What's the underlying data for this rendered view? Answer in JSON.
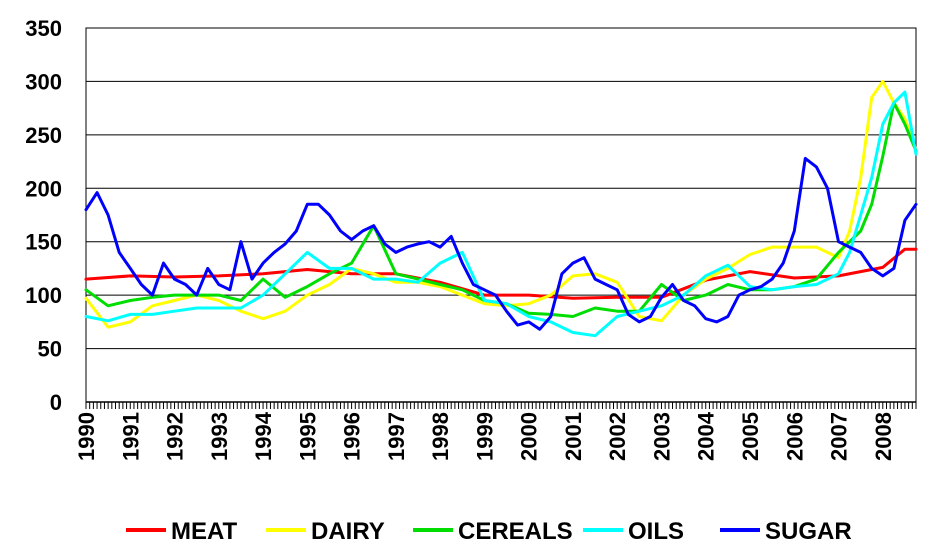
{
  "chart_data": {
    "type": "line",
    "title": "",
    "xlabel": "",
    "ylabel": "",
    "ylim": [
      0,
      350
    ],
    "yticks": [
      0,
      50,
      100,
      150,
      200,
      250,
      300,
      350
    ],
    "xlim": [
      1990,
      2008.75
    ],
    "year_labels": [
      "1990",
      "1991",
      "1992",
      "1993",
      "1994",
      "1995",
      "1996",
      "1997",
      "1998",
      "1999",
      "2000",
      "2001",
      "2002",
      "2003",
      "2004",
      "2005",
      "2006",
      "2007",
      "2008"
    ],
    "grid": "horizontal",
    "legend": "bottom",
    "series": [
      {
        "name": "MEAT",
        "color": "#ff0000",
        "x": [
          1990,
          1991,
          1992,
          1993,
          1994,
          1995,
          1996,
          1997,
          1998,
          1999,
          2000,
          2001,
          2002,
          2003,
          2004,
          2005,
          2006,
          2007,
          2008,
          2008.5,
          2008.75
        ],
        "y": [
          115,
          118,
          117,
          118,
          120,
          124,
          120,
          120,
          112,
          100,
          100,
          97,
          98,
          98,
          114,
          122,
          116,
          118,
          126,
          143,
          143
        ]
      },
      {
        "name": "DAIRY",
        "color": "#ffff00",
        "x": [
          1990,
          1990.5,
          1991,
          1991.5,
          1992,
          1992.5,
          1993,
          1993.5,
          1994,
          1994.5,
          1995,
          1995.5,
          1996,
          1996.5,
          1997,
          1997.5,
          1998,
          1998.5,
          1999,
          1999.5,
          2000,
          2000.5,
          2001,
          2001.5,
          2002,
          2002.5,
          2003,
          2003.5,
          2004,
          2004.5,
          2005,
          2005.5,
          2006,
          2006.5,
          2007,
          2007.25,
          2007.5,
          2007.75,
          2008,
          2008.25,
          2008.5,
          2008.75
        ],
        "y": [
          97,
          70,
          75,
          90,
          95,
          100,
          95,
          85,
          78,
          85,
          100,
          110,
          125,
          120,
          112,
          112,
          108,
          100,
          92,
          90,
          92,
          100,
          118,
          120,
          112,
          80,
          76,
          100,
          115,
          125,
          138,
          145,
          145,
          145,
          135,
          160,
          210,
          285,
          300,
          280,
          265,
          235
        ]
      },
      {
        "name": "CEREALS",
        "color": "#00dd00",
        "x": [
          1990,
          1990.5,
          1991,
          1991.5,
          1992,
          1992.5,
          1993,
          1993.5,
          1994,
          1994.5,
          1995,
          1995.5,
          1996,
          1996.5,
          1997,
          1997.5,
          1998,
          1998.5,
          1999,
          1999.5,
          2000,
          2000.5,
          2001,
          2001.5,
          2002,
          2002.5,
          2003,
          2003.5,
          2004,
          2004.5,
          2005,
          2005.5,
          2006,
          2006.5,
          2007,
          2007.25,
          2007.5,
          2007.75,
          2008,
          2008.25,
          2008.5,
          2008.75
        ],
        "y": [
          105,
          90,
          95,
          98,
          100,
          100,
          100,
          95,
          115,
          98,
          108,
          120,
          130,
          165,
          120,
          115,
          110,
          105,
          95,
          92,
          83,
          82,
          80,
          88,
          85,
          85,
          110,
          95,
          100,
          110,
          105,
          105,
          108,
          115,
          140,
          150,
          160,
          185,
          230,
          280,
          260,
          235
        ]
      },
      {
        "name": "OILS",
        "color": "#00ffff",
        "x": [
          1990,
          1990.5,
          1991,
          1991.5,
          1992,
          1992.5,
          1993,
          1993.5,
          1994,
          1994.5,
          1995,
          1995.5,
          1996,
          1996.5,
          1997,
          1997.5,
          1998,
          1998.5,
          1999,
          1999.5,
          2000,
          2000.5,
          2001,
          2001.5,
          2002,
          2002.5,
          2003,
          2003.5,
          2004,
          2004.5,
          2005,
          2005.5,
          2006,
          2006.5,
          2007,
          2007.25,
          2007.5,
          2007.75,
          2008,
          2008.25,
          2008.5,
          2008.75
        ],
        "y": [
          80,
          76,
          82,
          82,
          85,
          88,
          88,
          88,
          100,
          120,
          140,
          125,
          125,
          115,
          115,
          112,
          130,
          140,
          95,
          92,
          80,
          75,
          65,
          62,
          80,
          85,
          90,
          100,
          118,
          128,
          108,
          105,
          108,
          110,
          120,
          140,
          175,
          210,
          260,
          280,
          290,
          232
        ]
      },
      {
        "name": "SUGAR",
        "color": "#0000ff",
        "x": [
          1990,
          1990.25,
          1990.5,
          1990.75,
          1991,
          1991.25,
          1991.5,
          1991.75,
          1992,
          1992.25,
          1992.5,
          1992.75,
          1993,
          1993.25,
          1993.5,
          1993.75,
          1994,
          1994.25,
          1994.5,
          1994.75,
          1995,
          1995.25,
          1995.5,
          1995.75,
          1996,
          1996.25,
          1996.5,
          1996.75,
          1997,
          1997.25,
          1997.5,
          1997.75,
          1998,
          1998.25,
          1998.5,
          1998.75,
          1999,
          1999.25,
          1999.5,
          1999.75,
          2000,
          2000.25,
          2000.5,
          2000.75,
          2001,
          2001.25,
          2001.5,
          2001.75,
          2002,
          2002.25,
          2002.5,
          2002.75,
          2003,
          2003.25,
          2003.5,
          2003.75,
          2004,
          2004.25,
          2004.5,
          2004.75,
          2005,
          2005.25,
          2005.5,
          2005.75,
          2006,
          2006.25,
          2006.5,
          2006.75,
          2007,
          2007.25,
          2007.5,
          2007.75,
          2008,
          2008.25,
          2008.5,
          2008.75
        ],
        "y": [
          180,
          196,
          175,
          140,
          125,
          110,
          100,
          130,
          115,
          110,
          100,
          125,
          110,
          105,
          150,
          115,
          130,
          140,
          148,
          160,
          185,
          185,
          175,
          160,
          152,
          160,
          165,
          148,
          140,
          145,
          148,
          150,
          145,
          155,
          130,
          110,
          105,
          100,
          85,
          72,
          75,
          68,
          80,
          120,
          130,
          135,
          115,
          110,
          105,
          82,
          75,
          80,
          98,
          110,
          95,
          90,
          78,
          75,
          80,
          100,
          105,
          108,
          115,
          130,
          160,
          228,
          220,
          200,
          150,
          145,
          140,
          125,
          118,
          125,
          170,
          185
        ]
      }
    ]
  }
}
